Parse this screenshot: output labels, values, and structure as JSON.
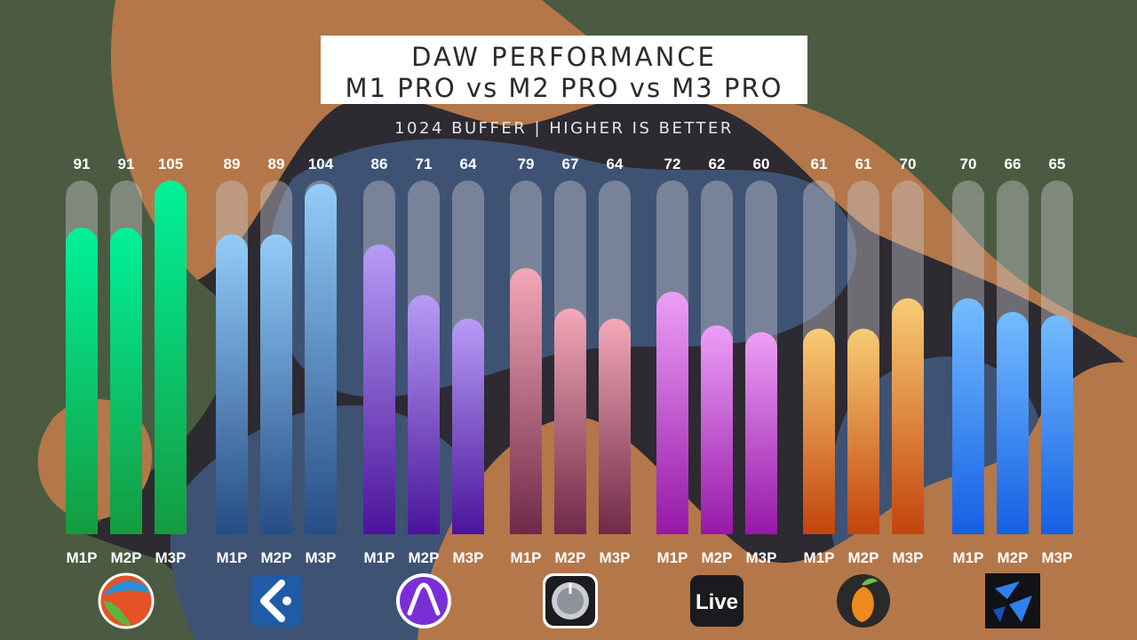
{
  "title": {
    "line1": "DAW PERFORMANCE",
    "line2": "M1 PRO vs M2 PRO vs M3 PRO"
  },
  "subtitle": "1024 BUFFER | HIGHER IS BETTER",
  "chart_data": {
    "type": "bar",
    "title": "DAW PERFORMANCE M1 PRO vs M2 PRO vs M3 PRO",
    "subtitle": "1024 BUFFER | HIGHER IS BETTER",
    "ylim": [
      0,
      120
    ],
    "grid": false,
    "bar_labels": [
      "M1P",
      "M2P",
      "M3P"
    ],
    "groups": [
      {
        "logo": "reaper-logo-icon",
        "values": [
          91,
          91,
          105
        ],
        "color_top": "#00f29a",
        "color_bottom": "#159b40"
      },
      {
        "logo": "cubase-logo-icon",
        "values": [
          89,
          89,
          104
        ],
        "color_top": "#93ccf8",
        "color_bottom": "#264d85"
      },
      {
        "logo": "pro-tools-logo-icon",
        "values": [
          86,
          71,
          64
        ],
        "color_top": "#b79cf6",
        "color_bottom": "#4a149a"
      },
      {
        "logo": "logic-pro-logo-icon",
        "values": [
          79,
          67,
          64
        ],
        "color_top": "#f4a8b8",
        "color_bottom": "#6e2a48"
      },
      {
        "logo": "ableton-live-logo-icon",
        "logo_text": "Live",
        "values": [
          72,
          62,
          60
        ],
        "color_top": "#ec9ff6",
        "color_bottom": "#9618a8"
      },
      {
        "logo": "fl-studio-logo-icon",
        "values": [
          61,
          61,
          70
        ],
        "color_top": "#f8cc76",
        "color_bottom": "#c2440c"
      },
      {
        "logo": "studio-one-logo-icon",
        "values": [
          70,
          66,
          65
        ],
        "color_top": "#74bcff",
        "color_bottom": "#1460e4"
      }
    ]
  }
}
